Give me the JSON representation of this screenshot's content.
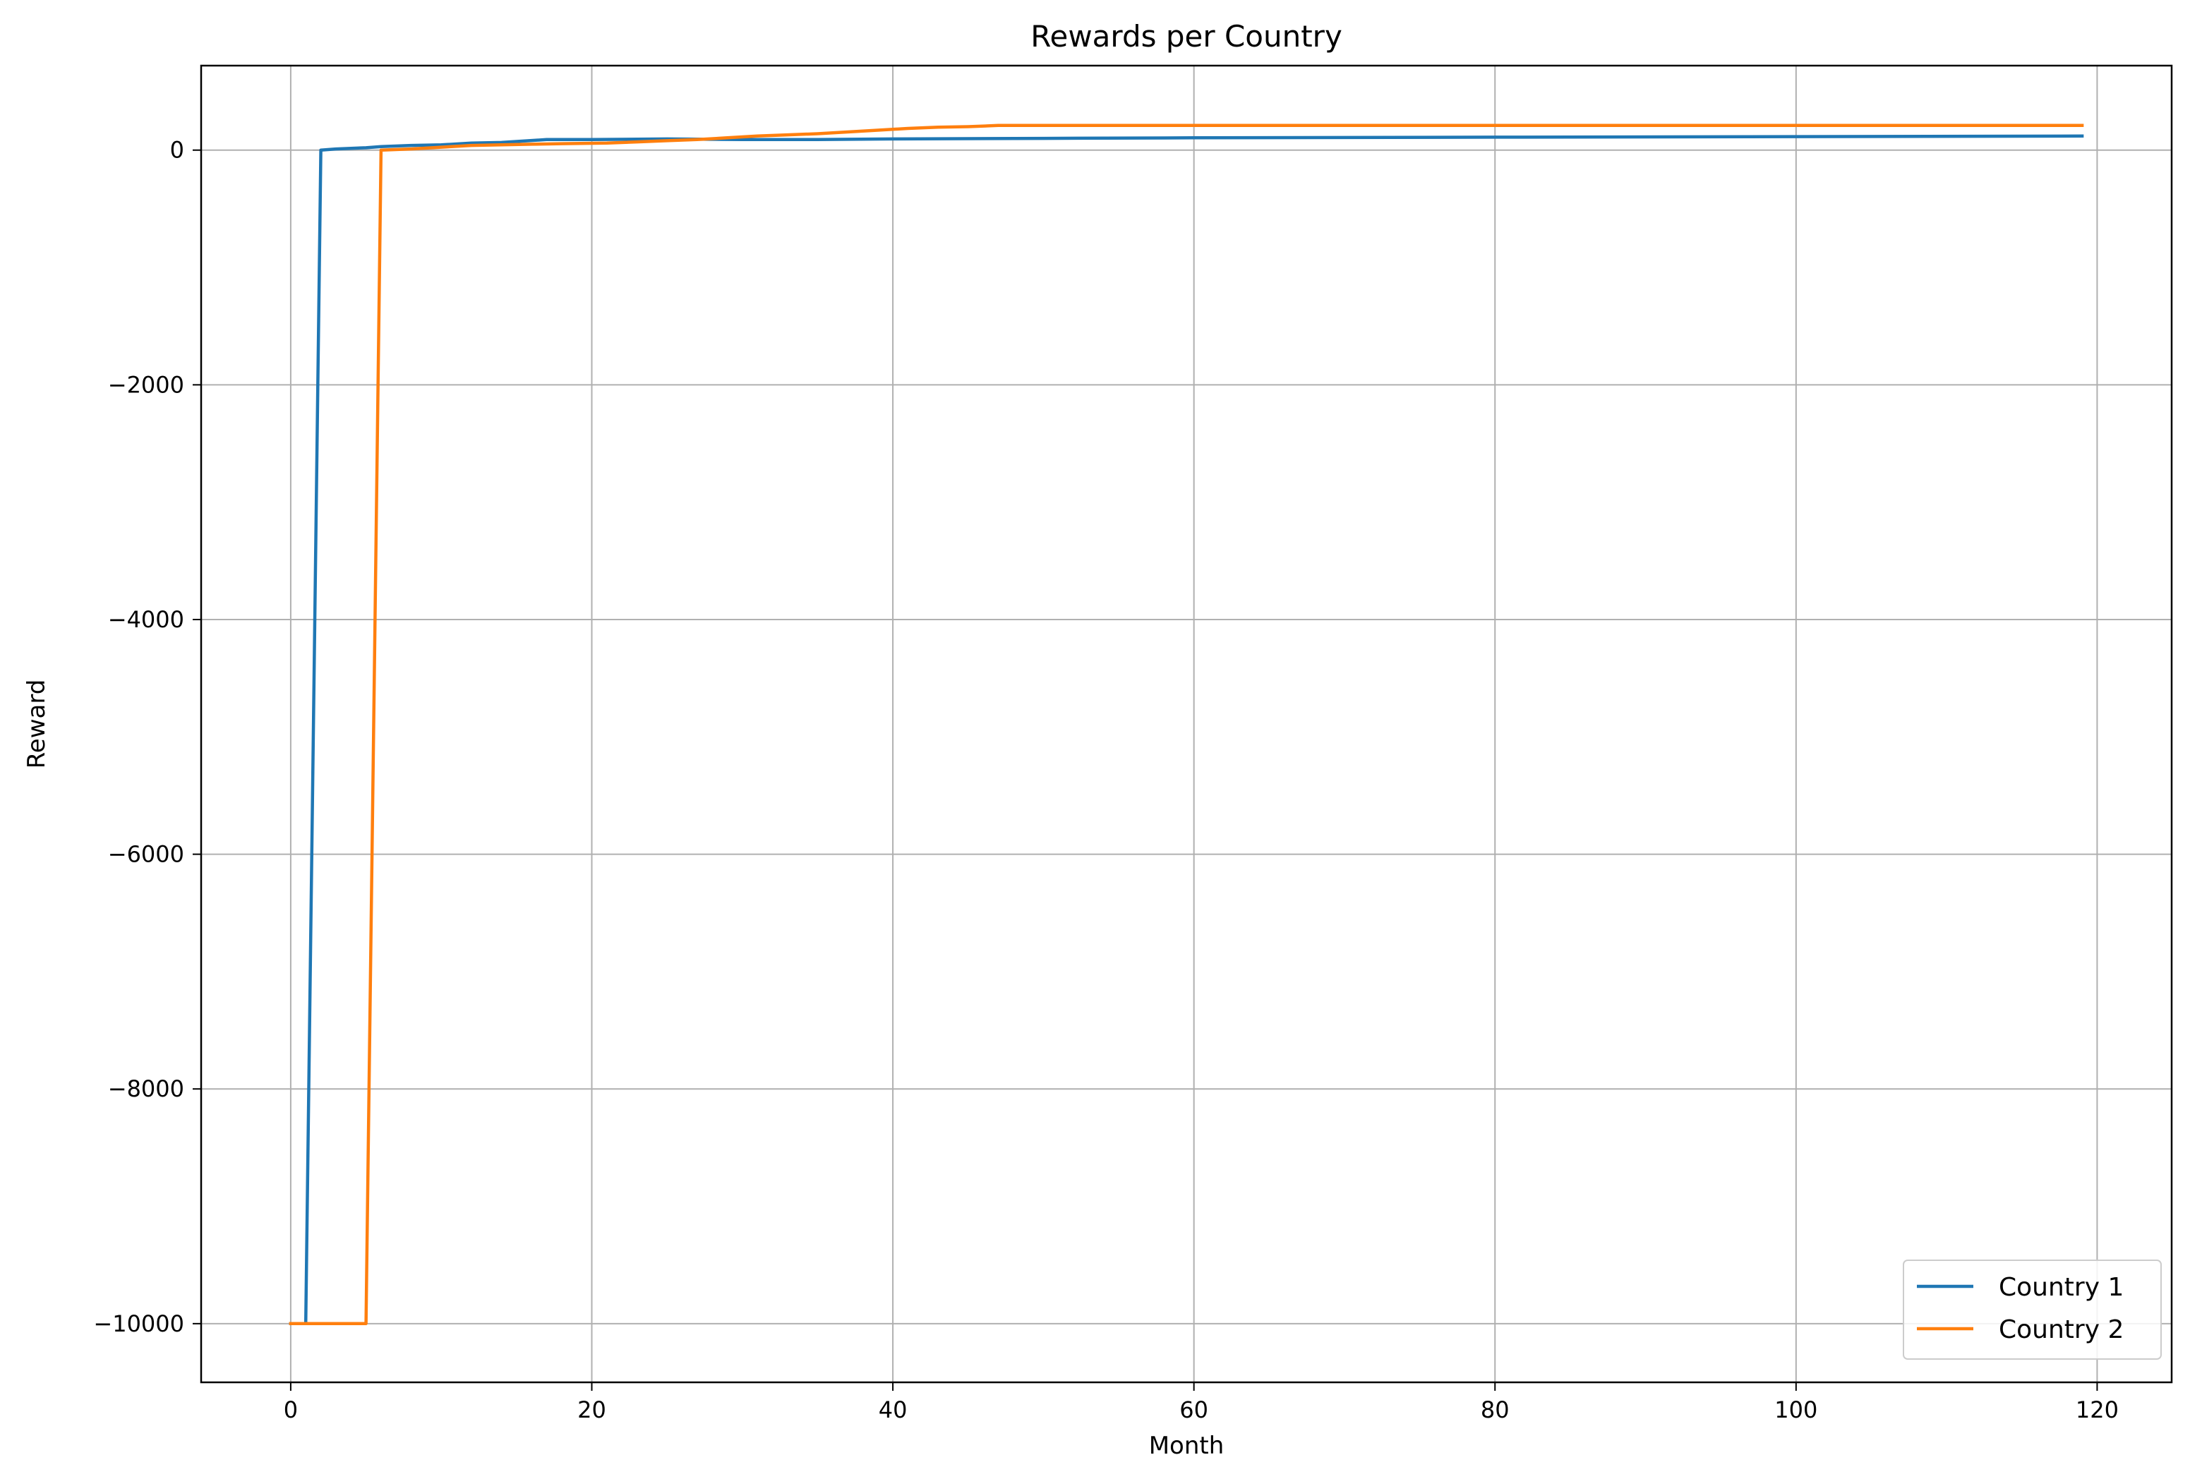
{
  "chart_data": {
    "type": "line",
    "title": "Rewards per Country",
    "xlabel": "Month",
    "ylabel": "Reward",
    "xlim": [
      -5.95,
      124.95
    ],
    "ylim": [
      -10500,
      720
    ],
    "xticks": [
      0,
      20,
      40,
      60,
      80,
      100,
      120
    ],
    "xtick_labels": [
      "0",
      "20",
      "40",
      "60",
      "80",
      "100",
      "120"
    ],
    "yticks": [
      0,
      -2000,
      -4000,
      -6000,
      -8000,
      -10000
    ],
    "ytick_labels": [
      "0",
      "−2000",
      "−4000",
      "−6000",
      "−8000",
      "−10000"
    ],
    "grid": true,
    "legend_position": "lower-right",
    "series": [
      {
        "name": "Country 1",
        "color": "#1f77b4",
        "points": [
          [
            0,
            -10000
          ],
          [
            1,
            -10000
          ],
          [
            2,
            0
          ],
          [
            3,
            10
          ],
          [
            4,
            15
          ],
          [
            5,
            20
          ],
          [
            6,
            30
          ],
          [
            8,
            40
          ],
          [
            10,
            45
          ],
          [
            12,
            60
          ],
          [
            14,
            65
          ],
          [
            17,
            90
          ],
          [
            20,
            90
          ],
          [
            25,
            95
          ],
          [
            30,
            90
          ],
          [
            35,
            90
          ],
          [
            40,
            95
          ],
          [
            50,
            100
          ],
          [
            60,
            105
          ],
          [
            80,
            110
          ],
          [
            100,
            115
          ],
          [
            119,
            120
          ]
        ]
      },
      {
        "name": "Country 2",
        "color": "#ff7f0e",
        "points": [
          [
            0,
            -10000
          ],
          [
            5,
            -10000
          ],
          [
            6,
            0
          ],
          [
            8,
            10
          ],
          [
            10,
            25
          ],
          [
            12,
            40
          ],
          [
            14,
            45
          ],
          [
            16,
            50
          ],
          [
            18,
            55
          ],
          [
            21,
            60
          ],
          [
            23,
            70
          ],
          [
            25,
            80
          ],
          [
            27,
            90
          ],
          [
            29,
            105
          ],
          [
            31,
            120
          ],
          [
            33,
            130
          ],
          [
            35,
            140
          ],
          [
            37,
            155
          ],
          [
            39,
            170
          ],
          [
            41,
            185
          ],
          [
            43,
            195
          ],
          [
            45,
            200
          ],
          [
            47,
            210
          ],
          [
            60,
            210
          ],
          [
            80,
            210
          ],
          [
            100,
            210
          ],
          [
            119,
            210
          ]
        ]
      }
    ]
  }
}
